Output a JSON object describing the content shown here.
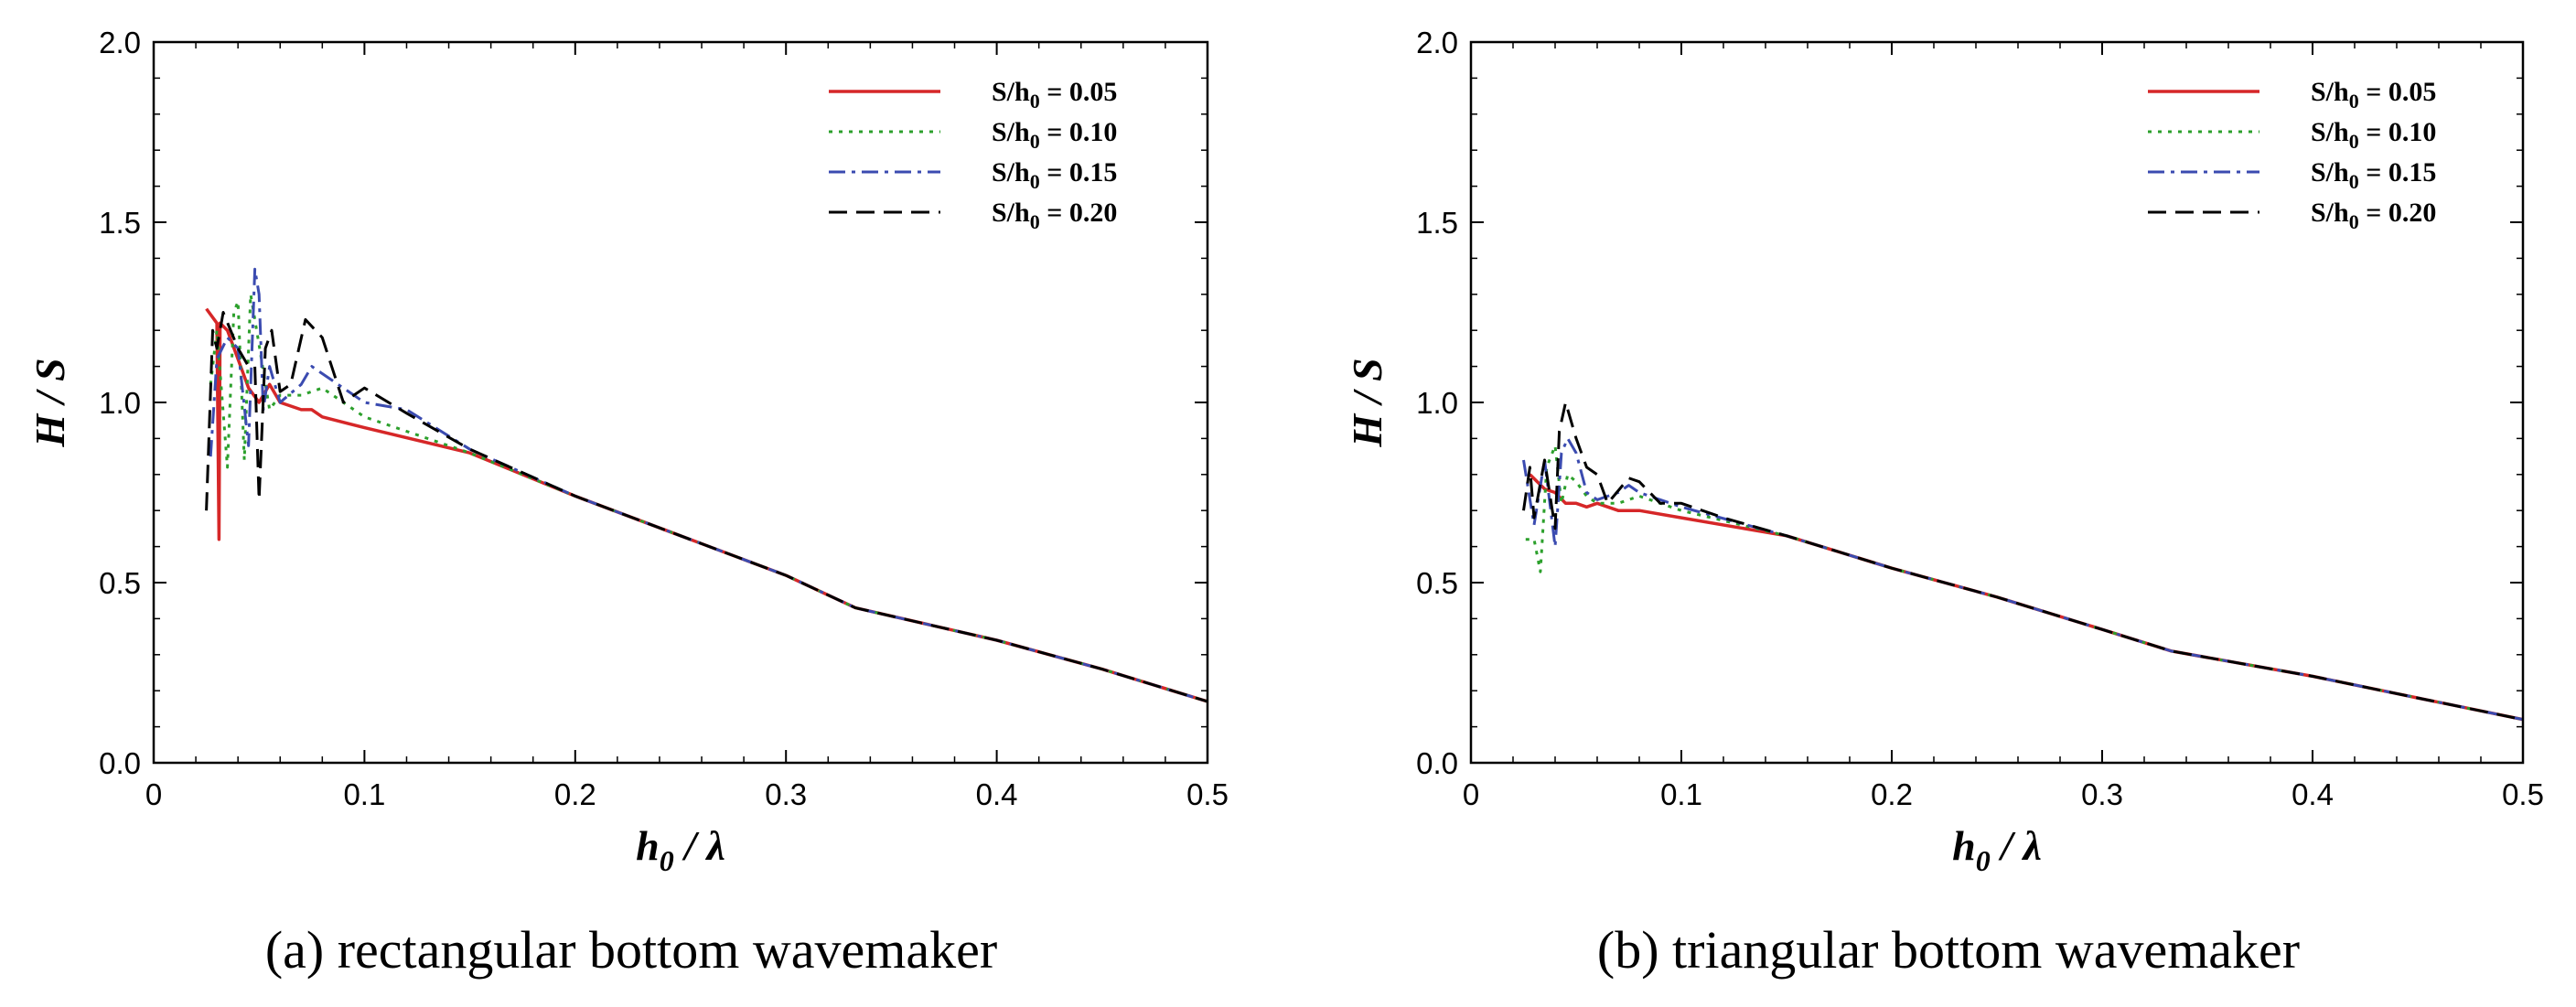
{
  "chart_data": [
    {
      "type": "line",
      "caption": "(a) rectangular bottom wavemaker",
      "xlabel": "h0 / λ",
      "ylabel": "H / S",
      "xlim": [
        0,
        0.5
      ],
      "ylim": [
        0,
        2.0
      ],
      "xticks": [
        "0",
        "0.1",
        "0.2",
        "0.3",
        "0.4",
        "0.5"
      ],
      "yticks": [
        "0.0",
        "0.5",
        "1.0",
        "1.5",
        "2.0"
      ],
      "legend_position": "top-right",
      "series": [
        {
          "name": "S/h0 = 0.05",
          "color": "#d62728",
          "dash": "solid",
          "points": [
            [
              0.025,
              1.26
            ],
            [
              0.03,
              1.22
            ],
            [
              0.031,
              0.62
            ],
            [
              0.0315,
              1.22
            ],
            [
              0.035,
              1.2
            ],
            [
              0.04,
              1.12
            ],
            [
              0.045,
              1.04
            ],
            [
              0.05,
              1.0
            ],
            [
              0.055,
              1.05
            ],
            [
              0.06,
              1.0
            ],
            [
              0.07,
              0.98
            ],
            [
              0.075,
              0.98
            ],
            [
              0.08,
              0.96
            ],
            [
              0.1,
              0.93
            ],
            [
              0.15,
              0.86
            ],
            [
              0.2,
              0.74
            ],
            [
              0.25,
              0.63
            ],
            [
              0.3,
              0.52
            ],
            [
              0.333,
              0.43
            ],
            [
              0.4,
              0.34
            ],
            [
              0.45,
              0.26
            ],
            [
              0.5,
              0.17
            ]
          ]
        },
        {
          "name": "S/h0 = 0.10",
          "color": "#2ca02c",
          "dash": "dot",
          "points": [
            [
              0.027,
              1.05
            ],
            [
              0.03,
              1.2
            ],
            [
              0.035,
              0.82
            ],
            [
              0.038,
              1.25
            ],
            [
              0.04,
              1.28
            ],
            [
              0.043,
              0.84
            ],
            [
              0.046,
              1.3
            ],
            [
              0.05,
              1.16
            ],
            [
              0.055,
              0.98
            ],
            [
              0.06,
              1.02
            ],
            [
              0.07,
              1.02
            ],
            [
              0.08,
              1.04
            ],
            [
              0.1,
              0.96
            ],
            [
              0.15,
              0.86
            ],
            [
              0.2,
              0.74
            ],
            [
              0.25,
              0.63
            ],
            [
              0.3,
              0.52
            ],
            [
              0.333,
              0.43
            ],
            [
              0.4,
              0.34
            ],
            [
              0.45,
              0.26
            ],
            [
              0.5,
              0.17
            ]
          ]
        },
        {
          "name": "S/h0 = 0.15",
          "color": "#3b4bb0",
          "dash": "dashdot",
          "points": [
            [
              0.027,
              0.85
            ],
            [
              0.03,
              1.12
            ],
            [
              0.035,
              1.18
            ],
            [
              0.04,
              1.15
            ],
            [
              0.045,
              0.88
            ],
            [
              0.048,
              1.37
            ],
            [
              0.05,
              1.3
            ],
            [
              0.052,
              0.98
            ],
            [
              0.055,
              1.1
            ],
            [
              0.06,
              1.0
            ],
            [
              0.07,
              1.05
            ],
            [
              0.075,
              1.1
            ],
            [
              0.08,
              1.08
            ],
            [
              0.1,
              1.0
            ],
            [
              0.12,
              0.98
            ],
            [
              0.15,
              0.87
            ],
            [
              0.2,
              0.74
            ],
            [
              0.25,
              0.63
            ],
            [
              0.3,
              0.52
            ],
            [
              0.333,
              0.43
            ],
            [
              0.4,
              0.34
            ],
            [
              0.45,
              0.26
            ],
            [
              0.5,
              0.17
            ]
          ]
        },
        {
          "name": "S/h0 = 0.20",
          "color": "#000000",
          "dash": "dash",
          "points": [
            [
              0.025,
              0.7
            ],
            [
              0.028,
              1.2
            ],
            [
              0.03,
              1.15
            ],
            [
              0.033,
              1.25
            ],
            [
              0.04,
              1.15
            ],
            [
              0.045,
              1.1
            ],
            [
              0.048,
              1.1
            ],
            [
              0.05,
              0.73
            ],
            [
              0.053,
              1.15
            ],
            [
              0.056,
              1.2
            ],
            [
              0.06,
              1.03
            ],
            [
              0.065,
              1.05
            ],
            [
              0.072,
              1.23
            ],
            [
              0.08,
              1.18
            ],
            [
              0.09,
              1.0
            ],
            [
              0.1,
              1.04
            ],
            [
              0.12,
              0.97
            ],
            [
              0.15,
              0.87
            ],
            [
              0.2,
              0.74
            ],
            [
              0.25,
              0.63
            ],
            [
              0.3,
              0.52
            ],
            [
              0.333,
              0.43
            ],
            [
              0.4,
              0.34
            ],
            [
              0.45,
              0.26
            ],
            [
              0.5,
              0.17
            ]
          ]
        }
      ]
    },
    {
      "type": "line",
      "caption": "(b) triangular bottom wavemaker",
      "xlabel": "h0 / λ",
      "ylabel": "H / S",
      "xlim": [
        0,
        0.5
      ],
      "ylim": [
        0,
        2.0
      ],
      "xticks": [
        "0",
        "0.1",
        "0.2",
        "0.3",
        "0.4",
        "0.5"
      ],
      "yticks": [
        "0.0",
        "0.5",
        "1.0",
        "1.5",
        "2.0"
      ],
      "legend_position": "top-right",
      "series": [
        {
          "name": "S/h0 = 0.05",
          "color": "#d62728",
          "dash": "solid",
          "points": [
            [
              0.028,
              0.8
            ],
            [
              0.035,
              0.76
            ],
            [
              0.04,
              0.75
            ],
            [
              0.045,
              0.72
            ],
            [
              0.05,
              0.72
            ],
            [
              0.055,
              0.71
            ],
            [
              0.06,
              0.72
            ],
            [
              0.07,
              0.7
            ],
            [
              0.08,
              0.7
            ],
            [
              0.1,
              0.68
            ],
            [
              0.15,
              0.63
            ],
            [
              0.2,
              0.54
            ],
            [
              0.25,
              0.46
            ],
            [
              0.3,
              0.37
            ],
            [
              0.333,
              0.31
            ],
            [
              0.4,
              0.24
            ],
            [
              0.45,
              0.18
            ],
            [
              0.5,
              0.12
            ]
          ]
        },
        {
          "name": "S/h0 = 0.10",
          "color": "#2ca02c",
          "dash": "dot",
          "points": [
            [
              0.026,
              0.62
            ],
            [
              0.03,
              0.62
            ],
            [
              0.033,
              0.53
            ],
            [
              0.036,
              0.82
            ],
            [
              0.04,
              0.88
            ],
            [
              0.043,
              0.72
            ],
            [
              0.046,
              0.8
            ],
            [
              0.05,
              0.78
            ],
            [
              0.055,
              0.74
            ],
            [
              0.06,
              0.72
            ],
            [
              0.07,
              0.72
            ],
            [
              0.08,
              0.74
            ],
            [
              0.1,
              0.7
            ],
            [
              0.15,
              0.63
            ],
            [
              0.2,
              0.54
            ],
            [
              0.25,
              0.46
            ],
            [
              0.3,
              0.37
            ],
            [
              0.333,
              0.31
            ],
            [
              0.4,
              0.24
            ],
            [
              0.45,
              0.18
            ],
            [
              0.5,
              0.12
            ]
          ]
        },
        {
          "name": "S/h0 = 0.15",
          "color": "#3b4bb0",
          "dash": "dashdot",
          "points": [
            [
              0.025,
              0.84
            ],
            [
              0.03,
              0.66
            ],
            [
              0.035,
              0.84
            ],
            [
              0.04,
              0.6
            ],
            [
              0.043,
              0.86
            ],
            [
              0.046,
              0.9
            ],
            [
              0.05,
              0.86
            ],
            [
              0.055,
              0.75
            ],
            [
              0.06,
              0.73
            ],
            [
              0.07,
              0.75
            ],
            [
              0.075,
              0.77
            ],
            [
              0.08,
              0.75
            ],
            [
              0.1,
              0.71
            ],
            [
              0.15,
              0.63
            ],
            [
              0.2,
              0.54
            ],
            [
              0.25,
              0.46
            ],
            [
              0.3,
              0.37
            ],
            [
              0.333,
              0.31
            ],
            [
              0.4,
              0.24
            ],
            [
              0.45,
              0.18
            ],
            [
              0.5,
              0.12
            ]
          ]
        },
        {
          "name": "S/h0 = 0.20",
          "color": "#000000",
          "dash": "dash",
          "points": [
            [
              0.025,
              0.7
            ],
            [
              0.028,
              0.82
            ],
            [
              0.03,
              0.68
            ],
            [
              0.035,
              0.84
            ],
            [
              0.04,
              0.65
            ],
            [
              0.042,
              0.92
            ],
            [
              0.045,
              1.0
            ],
            [
              0.05,
              0.9
            ],
            [
              0.055,
              0.82
            ],
            [
              0.06,
              0.8
            ],
            [
              0.065,
              0.72
            ],
            [
              0.075,
              0.79
            ],
            [
              0.08,
              0.78
            ],
            [
              0.09,
              0.72
            ],
            [
              0.1,
              0.72
            ],
            [
              0.12,
              0.68
            ],
            [
              0.15,
              0.63
            ],
            [
              0.2,
              0.54
            ],
            [
              0.25,
              0.46
            ],
            [
              0.3,
              0.37
            ],
            [
              0.333,
              0.31
            ],
            [
              0.4,
              0.24
            ],
            [
              0.45,
              0.18
            ],
            [
              0.5,
              0.12
            ]
          ]
        }
      ]
    }
  ]
}
